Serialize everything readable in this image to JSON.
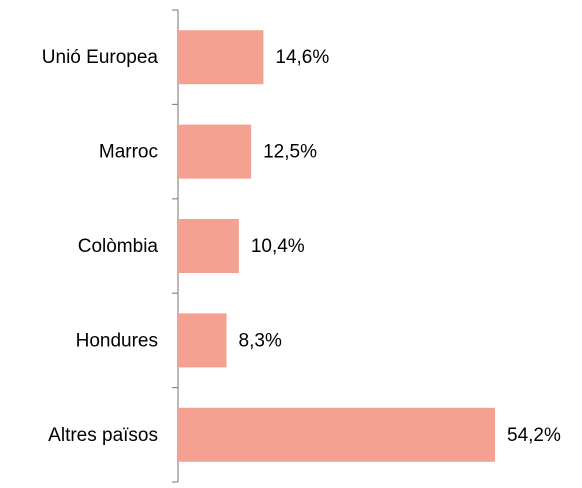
{
  "chart_data": {
    "type": "bar",
    "orientation": "horizontal",
    "categories": [
      "Unió Europea",
      "Marroc",
      "Colòmbia",
      "Hondures",
      "Altres països"
    ],
    "values": [
      14.6,
      12.5,
      10.4,
      8.3,
      54.2
    ],
    "value_labels": [
      "14,6%",
      "12,5%",
      "10,4%",
      "8,3%",
      "54,2%"
    ],
    "color": "#f4a191"
  }
}
